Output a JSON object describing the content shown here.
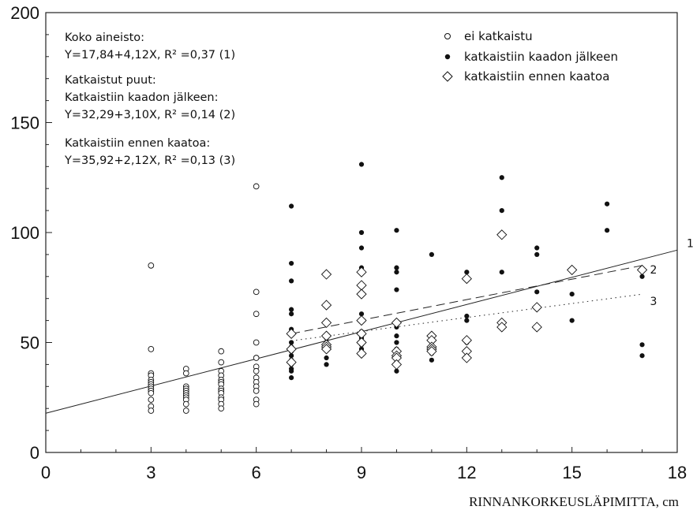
{
  "chart_data": {
    "type": "scatter",
    "xlim": [
      0,
      18
    ],
    "ylim": [
      0,
      200
    ],
    "x_ticks": [
      0,
      3,
      6,
      9,
      12,
      15,
      18
    ],
    "y_ticks": [
      0,
      50,
      100,
      150,
      200
    ],
    "xlabel": "RINNANKORKEUSLÄPIMITTA, cm",
    "ylabel": "",
    "grid": false,
    "legend_position": "top-right",
    "series": [
      {
        "name": "ei katkaistu",
        "marker": "open-circle",
        "points": [
          [
            3,
            85
          ],
          [
            3,
            47
          ],
          [
            3,
            36
          ],
          [
            3,
            35
          ],
          [
            3,
            33
          ],
          [
            3,
            32
          ],
          [
            3,
            31
          ],
          [
            3,
            30
          ],
          [
            3,
            29
          ],
          [
            3,
            28
          ],
          [
            3,
            27
          ],
          [
            3,
            24
          ],
          [
            3,
            21
          ],
          [
            3,
            19
          ],
          [
            4,
            38
          ],
          [
            4,
            36
          ],
          [
            4,
            30
          ],
          [
            4,
            29
          ],
          [
            4,
            28
          ],
          [
            4,
            27
          ],
          [
            4,
            26
          ],
          [
            4,
            25
          ],
          [
            4,
            24
          ],
          [
            4,
            22
          ],
          [
            4,
            19
          ],
          [
            5,
            46
          ],
          [
            5,
            41
          ],
          [
            5,
            37
          ],
          [
            5,
            35
          ],
          [
            5,
            33
          ],
          [
            5,
            32
          ],
          [
            5,
            31
          ],
          [
            5,
            29
          ],
          [
            5,
            28
          ],
          [
            5,
            27
          ],
          [
            5,
            25
          ],
          [
            5,
            24
          ],
          [
            5,
            22
          ],
          [
            5,
            20
          ],
          [
            6,
            121
          ],
          [
            6,
            73
          ],
          [
            6,
            63
          ],
          [
            6,
            50
          ],
          [
            6,
            43
          ],
          [
            6,
            39
          ],
          [
            6,
            37
          ],
          [
            6,
            34
          ],
          [
            6,
            32
          ],
          [
            6,
            30
          ],
          [
            6,
            28
          ],
          [
            6,
            24
          ],
          [
            6,
            22
          ]
        ]
      },
      {
        "name": "katkaistiin kaadon jälkeen",
        "marker": "filled-circle",
        "points": [
          [
            7,
            112
          ],
          [
            7,
            86
          ],
          [
            7,
            78
          ],
          [
            7,
            65
          ],
          [
            7,
            63
          ],
          [
            7,
            56
          ],
          [
            7,
            50
          ],
          [
            7,
            48
          ],
          [
            7,
            46
          ],
          [
            7,
            44
          ],
          [
            7,
            42
          ],
          [
            7,
            40
          ],
          [
            7,
            38
          ],
          [
            7,
            37
          ],
          [
            7,
            34
          ],
          [
            8,
            52
          ],
          [
            8,
            50
          ],
          [
            8,
            48
          ],
          [
            8,
            43
          ],
          [
            8,
            40
          ],
          [
            9,
            131
          ],
          [
            9,
            100
          ],
          [
            9,
            93
          ],
          [
            9,
            84
          ],
          [
            9,
            63
          ],
          [
            9,
            55
          ],
          [
            9,
            52
          ],
          [
            9,
            49
          ],
          [
            9,
            47
          ],
          [
            10,
            101
          ],
          [
            10,
            84
          ],
          [
            10,
            82
          ],
          [
            10,
            74
          ],
          [
            10,
            57
          ],
          [
            10,
            53
          ],
          [
            10,
            50
          ],
          [
            10,
            47
          ],
          [
            10,
            44
          ],
          [
            10,
            41
          ],
          [
            10,
            37
          ],
          [
            11,
            90
          ],
          [
            11,
            48
          ],
          [
            11,
            45
          ],
          [
            11,
            42
          ],
          [
            12,
            82
          ],
          [
            12,
            62
          ],
          [
            12,
            60
          ],
          [
            12,
            50
          ],
          [
            13,
            125
          ],
          [
            13,
            110
          ],
          [
            13,
            82
          ],
          [
            14,
            93
          ],
          [
            14,
            90
          ],
          [
            14,
            73
          ],
          [
            15,
            72
          ],
          [
            15,
            60
          ],
          [
            16,
            113
          ],
          [
            16,
            101
          ],
          [
            17,
            80
          ],
          [
            17,
            49
          ],
          [
            17,
            44
          ]
        ]
      },
      {
        "name": "katkaistiin ennen kaatoa",
        "marker": "open-diamond",
        "points": [
          [
            7,
            54
          ],
          [
            7,
            47
          ],
          [
            7,
            41
          ],
          [
            8,
            81
          ],
          [
            8,
            67
          ],
          [
            8,
            59
          ],
          [
            8,
            53
          ],
          [
            8,
            49
          ],
          [
            8,
            48
          ],
          [
            8,
            47
          ],
          [
            9,
            82
          ],
          [
            9,
            76
          ],
          [
            9,
            72
          ],
          [
            9,
            60
          ],
          [
            9,
            54
          ],
          [
            9,
            50
          ],
          [
            9,
            45
          ],
          [
            10,
            59
          ],
          [
            10,
            46
          ],
          [
            10,
            44
          ],
          [
            10,
            43
          ],
          [
            10,
            40
          ],
          [
            11,
            53
          ],
          [
            11,
            51
          ],
          [
            11,
            48
          ],
          [
            11,
            47
          ],
          [
            11,
            46
          ],
          [
            12,
            79
          ],
          [
            12,
            51
          ],
          [
            12,
            46
          ],
          [
            12,
            43
          ],
          [
            13,
            99
          ],
          [
            13,
            59
          ],
          [
            13,
            57
          ],
          [
            14,
            66
          ],
          [
            14,
            57
          ],
          [
            15,
            83
          ],
          [
            17,
            83
          ]
        ]
      }
    ],
    "regression_lines": [
      {
        "label": "1",
        "style": "solid",
        "intercept": 17.84,
        "slope": 4.12,
        "x_range": [
          0,
          18
        ]
      },
      {
        "label": "2",
        "style": "dashed",
        "intercept": 32.29,
        "slope": 3.1,
        "x_range": [
          7,
          17
        ]
      },
      {
        "label": "3",
        "style": "dotted",
        "intercept": 35.92,
        "slope": 2.12,
        "x_range": [
          7,
          17
        ]
      }
    ],
    "annotations": [
      "Koko aineisto:",
      "Y=17,84+4,12X, R² =0,37  (1)",
      "Katkaistut puut:",
      "Katkaistiin kaadon jälkeen:",
      "Y=32,29+3,10X, R² =0,14  (2)",
      "Katkaistiin ennen kaatoa:",
      "Y=35,92+2,12X, R² =0,13  (3)"
    ]
  }
}
